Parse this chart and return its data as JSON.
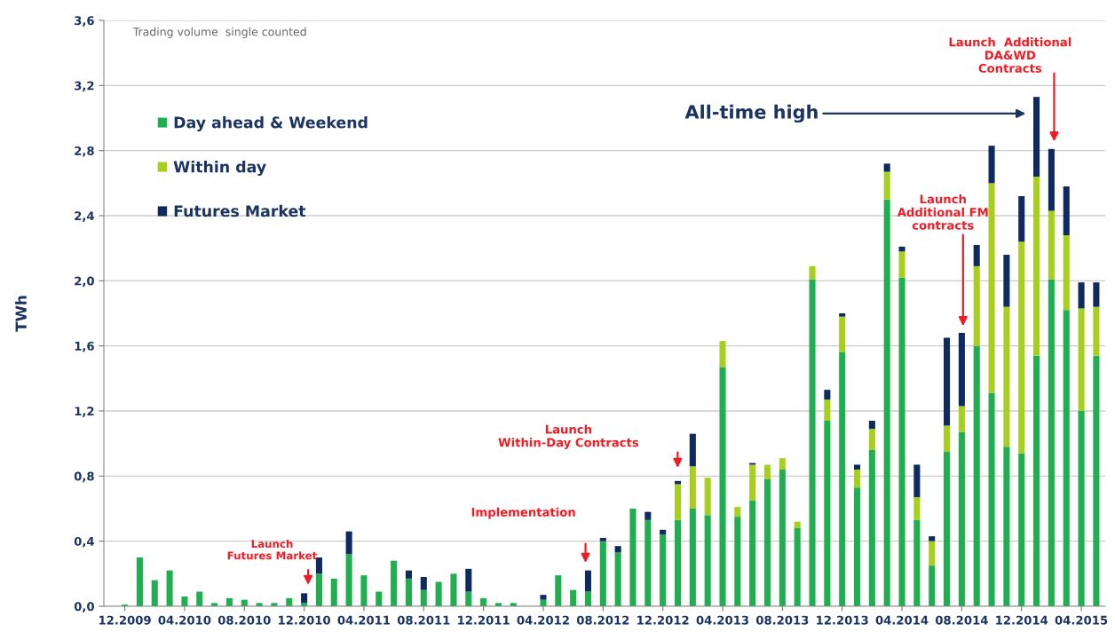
{
  "chart_data": {
    "type": "bar",
    "stacked": true,
    "ylabel": "TWh",
    "categories": [
      "12.2009",
      null,
      null,
      null,
      "04.2010",
      null,
      null,
      null,
      "08.2010",
      null,
      null,
      null,
      "12.2010",
      null,
      null,
      null,
      "04.2011",
      null,
      null,
      null,
      "08.2011",
      null,
      null,
      null,
      "12.2011",
      null,
      null,
      null,
      "04.2012",
      null,
      null,
      null,
      "08.2012",
      null,
      null,
      null,
      "12.2012",
      null,
      null,
      null,
      "04.2013",
      null,
      null,
      null,
      "08.2013",
      null,
      null,
      null,
      "12.2013",
      null,
      null,
      null,
      "04.2014",
      null,
      null,
      null,
      "08.2014",
      null,
      null,
      null,
      "12.2014",
      null,
      null,
      null,
      "04.2015",
      null
    ],
    "series": [
      {
        "name": "Day ahead & Weekend",
        "color": "#1fae50",
        "values": [
          0.01,
          0.3,
          0.16,
          0.22,
          0.06,
          0.09,
          0.02,
          0.05,
          0.04,
          0.02,
          0.02,
          0.05,
          0.02,
          0.2,
          0.17,
          0.32,
          0.19,
          0.09,
          0.28,
          0.17,
          0.1,
          0.15,
          0.2,
          0.09,
          0.05,
          0.02,
          0.02,
          0.0,
          0.04,
          0.19,
          0.1,
          0.09,
          0.4,
          0.33,
          0.6,
          0.53,
          0.44,
          0.53,
          0.6,
          0.56,
          1.47,
          0.55,
          0.65,
          0.78,
          0.84,
          0.48,
          2.01,
          1.14,
          1.56,
          0.73,
          0.96,
          2.5,
          2.02,
          0.53,
          0.25,
          0.95,
          1.07,
          1.6,
          1.31,
          0.98,
          0.94,
          1.54,
          2.01,
          1.82,
          1.2,
          1.54
        ]
      },
      {
        "name": "Within day",
        "color": "#a6cf1e",
        "values": [
          0,
          0,
          0,
          0,
          0,
          0,
          0,
          0,
          0,
          0,
          0,
          0,
          0,
          0,
          0,
          0,
          0,
          0,
          0,
          0,
          0,
          0,
          0,
          0,
          0,
          0,
          0,
          0,
          0,
          0,
          0,
          0,
          0,
          0,
          0,
          0,
          0,
          0.22,
          0.26,
          0.23,
          0.16,
          0.06,
          0.22,
          0.09,
          0.07,
          0.04,
          0.08,
          0.13,
          0.22,
          0.11,
          0.13,
          0.17,
          0.16,
          0.14,
          0.15,
          0.16,
          0.16,
          0.49,
          1.29,
          0.86,
          1.3,
          1.1,
          0.42,
          0.46,
          0.63,
          0.3
        ]
      },
      {
        "name": "Futures Market",
        "color": "#0e2a5e",
        "values": [
          0,
          0,
          0,
          0,
          0,
          0,
          0,
          0,
          0,
          0,
          0,
          0,
          0.06,
          0.1,
          0,
          0.14,
          0,
          0,
          0,
          0.05,
          0.08,
          0,
          0,
          0.14,
          0,
          0,
          0,
          0,
          0.03,
          0,
          0,
          0.13,
          0.02,
          0.04,
          0,
          0.05,
          0.03,
          0.02,
          0.2,
          0,
          0,
          0,
          0.01,
          0,
          0,
          0,
          0,
          0.06,
          0.02,
          0.03,
          0.05,
          0.05,
          0.03,
          0.2,
          0.03,
          0.54,
          0.45,
          0.13,
          0.23,
          0.32,
          0.28,
          0.49,
          0.38,
          0.3,
          0.16,
          0.15
        ]
      }
    ],
    "ylim": [
      0,
      3.6
    ],
    "yticks": [
      {
        "value": 0,
        "label": "0,0"
      },
      {
        "value": 0.4,
        "label": "0,4"
      },
      {
        "value": 0.8,
        "label": "0,8"
      },
      {
        "value": 1.2,
        "label": "1,2"
      },
      {
        "value": 1.6,
        "label": "1,6"
      },
      {
        "value": 2.0,
        "label": "2,0"
      },
      {
        "value": 2.4,
        "label": "2,4"
      },
      {
        "value": 2.8,
        "label": "2,8"
      },
      {
        "value": 3.2,
        "label": "3,2"
      },
      {
        "value": 3.6,
        "label": "3,6"
      }
    ],
    "grid": "y",
    "legend": "top left",
    "annotations": [
      "Trading volume  single counted",
      "All-time high",
      "Launch\nFutures Market",
      "Implementation",
      "Launch\nWithin-Day Contracts",
      "Launch\nAdditional FM\ncontracts",
      "Launch  Additional\nDA&WD\nContracts"
    ]
  }
}
